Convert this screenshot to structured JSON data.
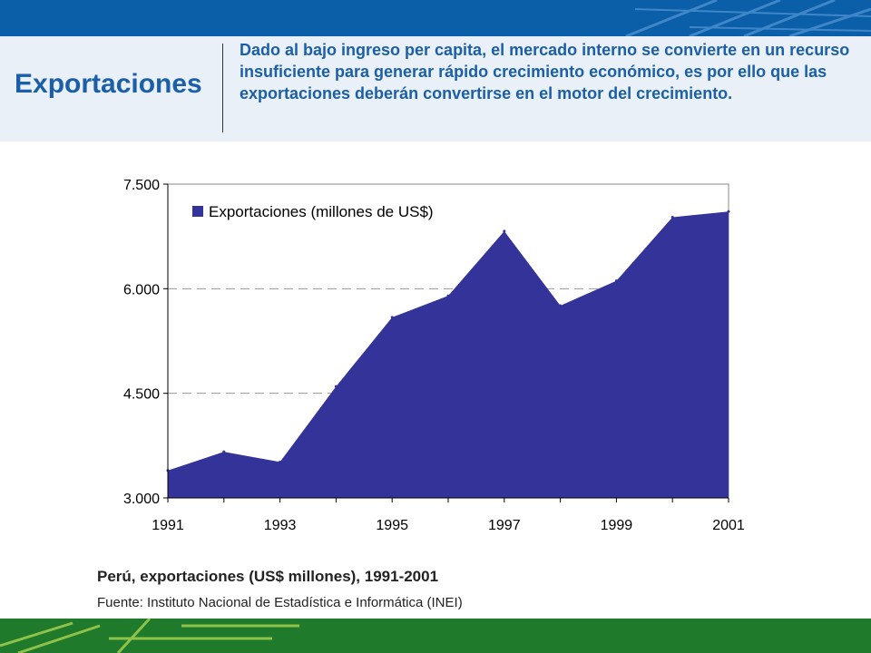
{
  "header": {
    "title": "Exportaciones",
    "text": "Dado al bajo ingreso per capita, el mercado interno se convierte en un recurso insuficiente para generar rápido crecimiento económico, es por ello que las exportaciones deberán convertirse en el motor del crecimiento."
  },
  "colors": {
    "top_band": "#0b5ea8",
    "header_bg": "#eaf0f8",
    "title_text": "#1a5fa8",
    "area_fill": "#333399",
    "bottom_band": "#1f7a2c"
  },
  "chart_data": {
    "type": "area",
    "x": [
      1991,
      1992,
      1993,
      1994,
      1995,
      1996,
      1997,
      1998,
      1999,
      2000,
      2001
    ],
    "series": [
      {
        "name": "Exportaciones (millones de US$)",
        "values": [
          3393,
          3661,
          3516,
          4598,
          5589,
          5898,
          6825,
          5757,
          6113,
          7026,
          7107
        ]
      }
    ],
    "ylim": [
      3000,
      7500
    ],
    "y_ticks": [
      "3.000",
      "4.500",
      "6.000",
      "7.500"
    ],
    "y_tick_values": [
      3000,
      4500,
      6000,
      7500
    ],
    "x_ticks": [
      "1991",
      "1993",
      "1995",
      "1997",
      "1999",
      "2001"
    ],
    "x_tick_values": [
      1991,
      1993,
      1995,
      1997,
      1999,
      2001
    ],
    "grid": "horizontal dashed",
    "legend_position": "top-left",
    "title": "Perú, exportaciones (US$ millones), 1991-2001",
    "source": "Fuente: Instituto Nacional de Estadística e Informática (INEI)"
  }
}
